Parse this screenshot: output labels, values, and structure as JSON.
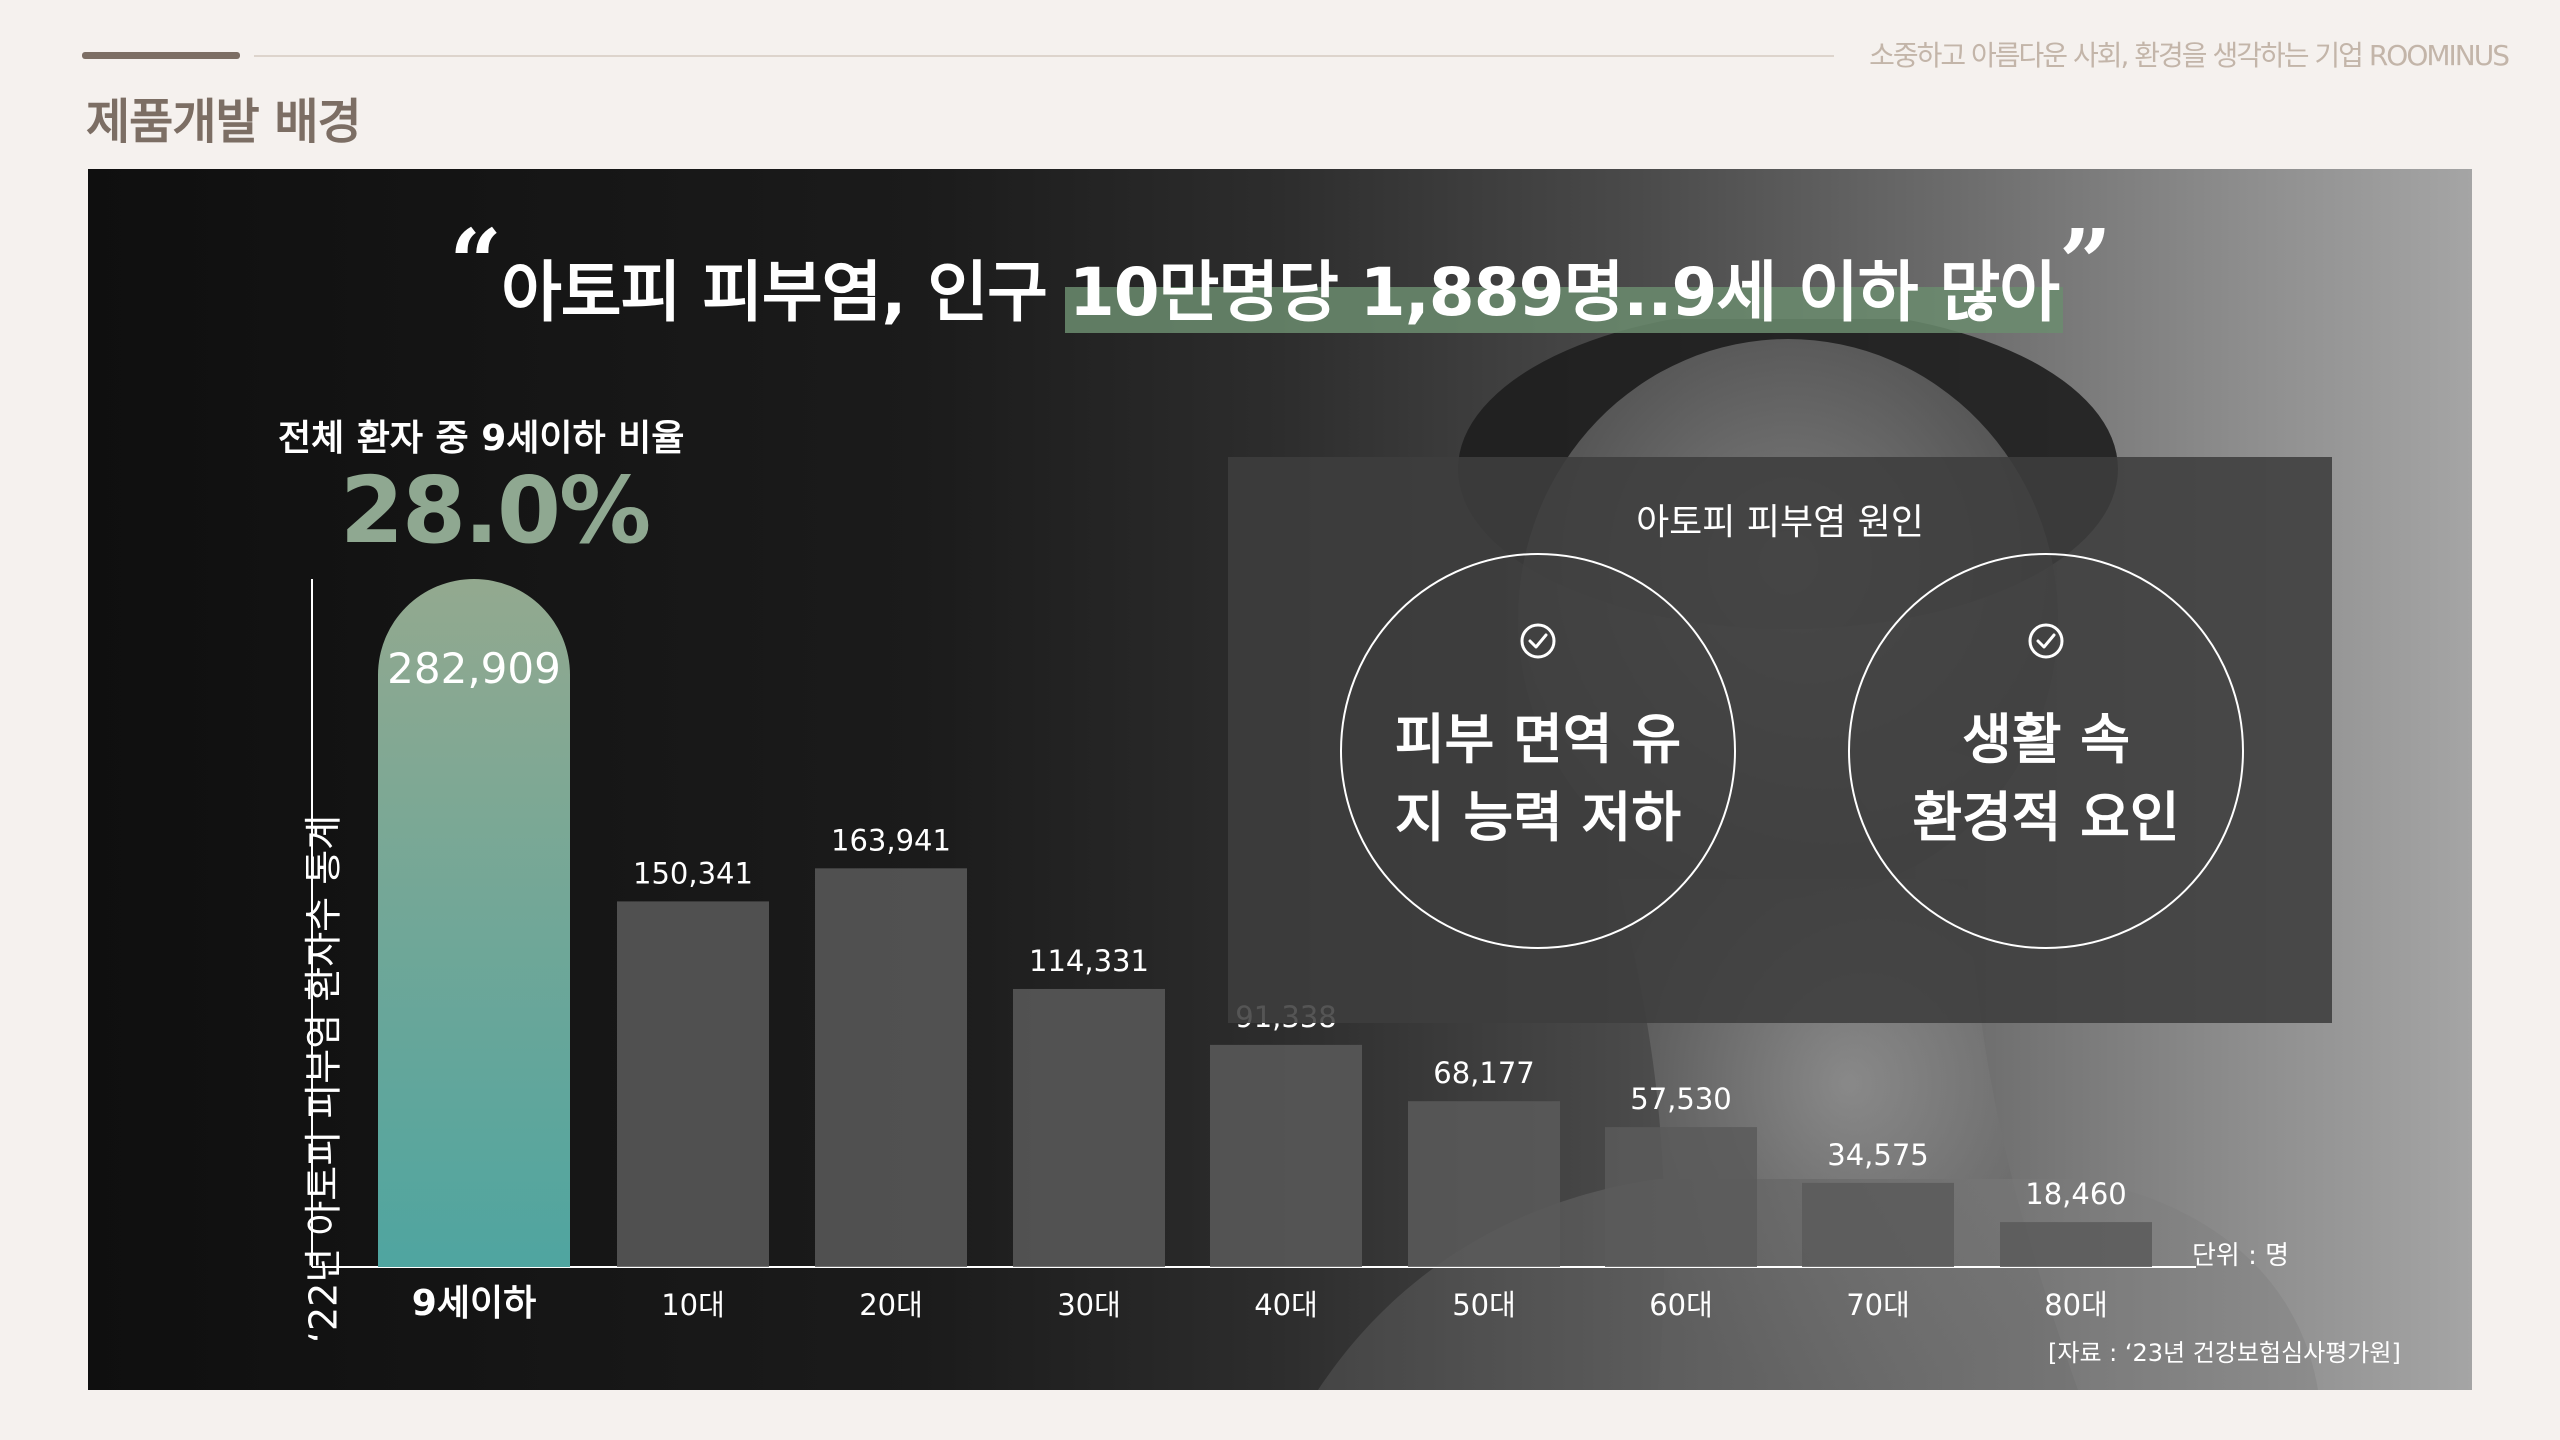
{
  "header": {
    "tagline": "소중하고 아름다운 사회, 환경을 생각하는 기업 ROOMINUS",
    "page_title": "제품개발 배경"
  },
  "headline": {
    "open_quote": "“",
    "text_plain": "아토피 피부염, 인구 ",
    "text_highlight": "10만명당 1,889명..9세 이하 많아",
    "close_quote": "”"
  },
  "ratio": {
    "label": "전체 환자 중 9세이하 비율",
    "value": "28.0%"
  },
  "causes": {
    "title": "아토피 피부염 원인",
    "items": [
      "피부 면역 유지 능력 저하",
      "생활 속 환경적 요인"
    ],
    "item_lines": [
      [
        "피부 면역 유",
        "지 능력 저하"
      ],
      [
        "생활 속",
        "환경적 요인"
      ]
    ]
  },
  "chart_data": {
    "type": "bar",
    "ylabel": "‘22년 아토피 피부염 환자수 통계",
    "categories": [
      "9세이하",
      "10대",
      "20대",
      "30대",
      "40대",
      "50대",
      "60대",
      "70대",
      "80대"
    ],
    "values": [
      282909,
      150341,
      163941,
      114331,
      91338,
      68177,
      57530,
      34575,
      18460
    ],
    "value_labels": [
      "282,909",
      "150,341",
      "163,941",
      "114,331",
      "91,338",
      "68,177",
      "57,530",
      "34,575",
      "18,460"
    ],
    "ylim": [
      0,
      282909
    ],
    "grid": false,
    "unit": "단위 : 명",
    "source": "[자료 : ‘23년 건강보험심사평가원]",
    "colors": {
      "highlight_top": "#93a98f",
      "highlight_bottom": "#4fa5a0",
      "bar": "#5a5a5a",
      "axis": "#ffffff",
      "text": "#ffffff"
    }
  }
}
